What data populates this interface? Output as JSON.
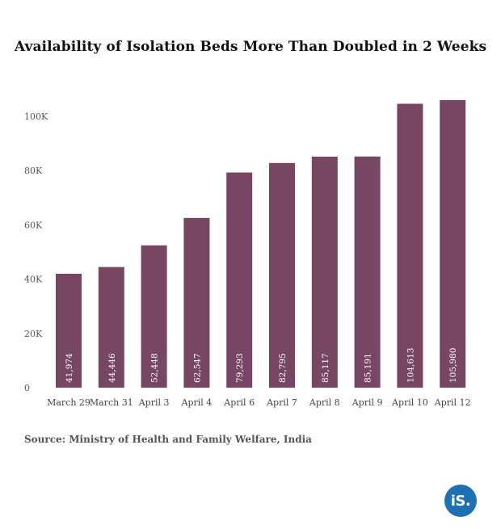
{
  "chart_data": {
    "type": "bar",
    "title": "Availability of Isolation Beds More Than Doubled in 2 Weeks",
    "source": "Source: Ministry of Health and Family Welfare, India",
    "categories": [
      "March 29",
      "March 31",
      "April 3",
      "April 4",
      "April 6",
      "April 7",
      "April 8",
      "April 9",
      "April 10",
      "April 12"
    ],
    "values": [
      41974,
      44446,
      52448,
      62547,
      79293,
      82795,
      85117,
      85191,
      104613,
      105980
    ],
    "data_labels": [
      "41,974",
      "44,446",
      "52,448",
      "62,547",
      "79,293",
      "82,795",
      "85,117",
      "85,191",
      "104,613",
      "105,980"
    ],
    "y_ticks": [
      0,
      20000,
      40000,
      60000,
      80000,
      100000
    ],
    "y_tick_labels": [
      "0",
      "20K",
      "40K",
      "60K",
      "80K",
      "100K"
    ],
    "ylim": [
      0,
      110000
    ],
    "grid": false,
    "bar_color": "#764663"
  },
  "logo": {
    "text": "iS.",
    "color": "#1f6fb5"
  }
}
